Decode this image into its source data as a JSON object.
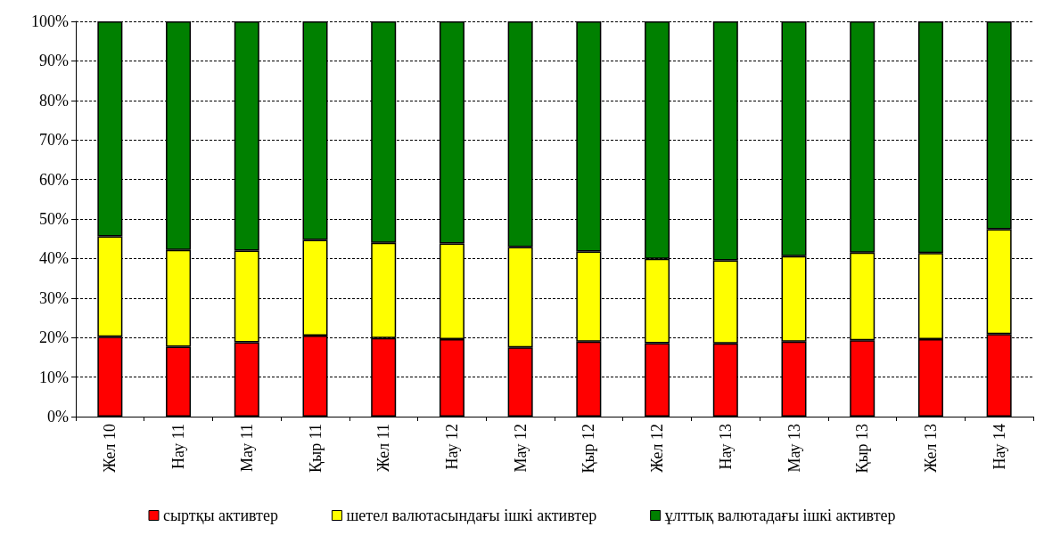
{
  "chart_data": {
    "type": "bar",
    "stacked": true,
    "categories": [
      "Жел 10",
      "Нау 11",
      "Мау 11",
      "Қыр 11",
      "Жел 11",
      "Нау 12",
      "Мау 12",
      "Қыр 12",
      "Жел 12",
      "Нау 13",
      "Мау 13",
      "Қыр 13",
      "Жел 13",
      "Нау 14"
    ],
    "series": [
      {
        "name": "сыртқы активтер",
        "color": "#ff0000",
        "values": [
          20.2,
          17.7,
          18.8,
          20.5,
          19.9,
          19.6,
          17.5,
          19.0,
          18.6,
          18.5,
          19.0,
          19.3,
          19.6,
          20.9
        ]
      },
      {
        "name": "шетел валютасындағы ішкі активтер",
        "color": "#ffff00",
        "values": [
          25.4,
          24.5,
          23.2,
          24.2,
          24.1,
          24.2,
          25.4,
          22.8,
          21.3,
          21.0,
          21.6,
          22.2,
          21.8,
          26.5
        ]
      },
      {
        "name": "ұлттық валютадағы ішкі активтер",
        "color": "#008000",
        "values": [
          54.4,
          57.8,
          58.0,
          55.3,
          56.0,
          56.2,
          57.1,
          58.2,
          60.1,
          60.5,
          59.4,
          58.5,
          58.6,
          52.6
        ]
      }
    ],
    "ylim": [
      0,
      100
    ],
    "yticks": [
      {
        "value": 0,
        "label": "0%"
      },
      {
        "value": 10,
        "label": "10%"
      },
      {
        "value": 20,
        "label": "20%"
      },
      {
        "value": 30,
        "label": "30%"
      },
      {
        "value": 40,
        "label": "40%"
      },
      {
        "value": 50,
        "label": "50%"
      },
      {
        "value": 60,
        "label": "60%"
      },
      {
        "value": 70,
        "label": "70%"
      },
      {
        "value": 80,
        "label": "80%"
      },
      {
        "value": 90,
        "label": "90%"
      },
      {
        "value": 100,
        "label": "100%"
      }
    ],
    "grid": "y",
    "legend": "bottom"
  }
}
